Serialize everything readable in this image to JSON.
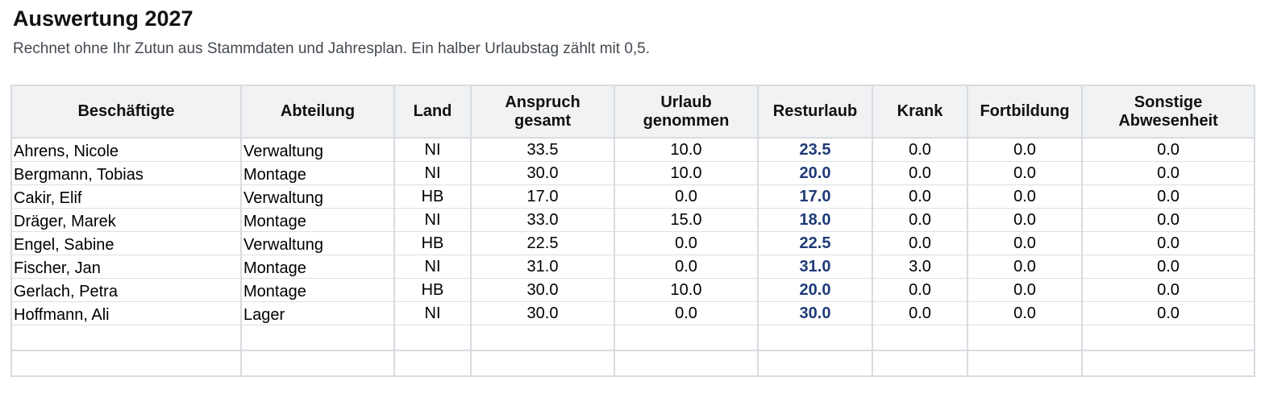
{
  "page": {
    "title": "Auswertung 2027",
    "subtitle": "Rechnet ohne Ihr Zutun aus Stammdaten und Jahresplan. Ein halber Urlaubstag zählt mit 0,5."
  },
  "table": {
    "headers": [
      "Beschäftigte",
      "Abteilung",
      "Land",
      "Anspruch gesamt",
      "Urlaub genommen",
      "Resturlaub",
      "Krank",
      "Fortbildung",
      "Sonstige Abwesenheit"
    ],
    "rows": [
      [
        "Ahrens, Nicole",
        "Verwaltung",
        "NI",
        "33.5",
        "10.0",
        "23.5",
        "0.0",
        "0.0",
        "0.0"
      ],
      [
        "Bergmann, Tobias",
        "Montage",
        "NI",
        "30.0",
        "10.0",
        "20.0",
        "0.0",
        "0.0",
        "0.0"
      ],
      [
        "Cakir, Elif",
        "Verwaltung",
        "HB",
        "17.0",
        "0.0",
        "17.0",
        "0.0",
        "0.0",
        "0.0"
      ],
      [
        "Dräger, Marek",
        "Montage",
        "NI",
        "33.0",
        "15.0",
        "18.0",
        "0.0",
        "0.0",
        "0.0"
      ],
      [
        "Engel, Sabine",
        "Verwaltung",
        "HB",
        "22.5",
        "0.0",
        "22.5",
        "0.0",
        "0.0",
        "0.0"
      ],
      [
        "Fischer, Jan",
        "Montage",
        "NI",
        "31.0",
        "0.0",
        "31.0",
        "3.0",
        "0.0",
        "0.0"
      ],
      [
        "Gerlach, Petra",
        "Montage",
        "HB",
        "30.0",
        "10.0",
        "20.0",
        "0.0",
        "0.0",
        "0.0"
      ],
      [
        "Hoffmann, Ali",
        "Lager",
        "NI",
        "30.0",
        "0.0",
        "30.0",
        "0.0",
        "0.0",
        "0.0"
      ]
    ],
    "empty_rows": 2
  },
  "colors": {
    "resturlaub_text": "#1f3a78",
    "header_background": "#f1f2f4",
    "grid_line": "#d8dbe0"
  }
}
